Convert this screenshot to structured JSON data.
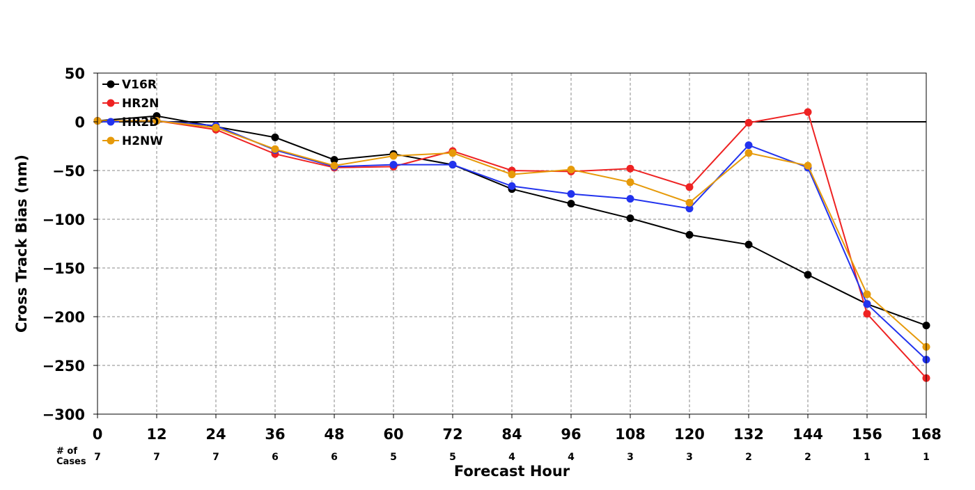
{
  "chart_data": {
    "type": "line",
    "title": "",
    "xlabel": "Forecast Hour",
    "ylabel": "Cross Track Bias (nm)",
    "xlim": [
      0,
      168
    ],
    "ylim": [
      -300,
      50
    ],
    "x_ticks": [
      0,
      12,
      24,
      36,
      48,
      60,
      72,
      84,
      96,
      108,
      120,
      132,
      144,
      156,
      168
    ],
    "x_tick_labels": [
      "0",
      "12",
      "24",
      "36",
      "48",
      "60",
      "72",
      "84",
      "96",
      "108",
      "120",
      "132",
      "144",
      "156",
      "168"
    ],
    "y_ticks": [
      50,
      0,
      -50,
      -100,
      -150,
      -200,
      -250,
      -300
    ],
    "y_tick_labels": [
      "50",
      "0",
      "−50",
      "−100",
      "−150",
      "−200",
      "−250",
      "−300"
    ],
    "grid": true,
    "zero_line": true,
    "legend_position": "top-left",
    "cases_title": "# of\nCases",
    "num_cases": [
      "7",
      "7",
      "7",
      "6",
      "6",
      "5",
      "5",
      "4",
      "4",
      "3",
      "3",
      "2",
      "2",
      "1",
      "1"
    ],
    "x": [
      0,
      12,
      24,
      36,
      48,
      60,
      72,
      84,
      96,
      108,
      120,
      132,
      144,
      156,
      168
    ],
    "series": [
      {
        "name": "V16R",
        "color": "#000000",
        "values": [
          1,
          6,
          -5,
          -16,
          -39,
          -33,
          -44,
          -69,
          -84,
          -99,
          -116,
          -126,
          -157,
          -187,
          -209
        ]
      },
      {
        "name": "HR2N",
        "color": "#ee2222",
        "values": [
          1,
          1,
          -8,
          -33,
          -47,
          -46,
          -30,
          -50,
          -51,
          -48,
          -67,
          -1,
          10,
          -197,
          -263
        ]
      },
      {
        "name": "HR2D",
        "color": "#2233ee",
        "values": [
          1,
          1,
          -4,
          -29,
          -46,
          -44,
          -44,
          -66,
          -74,
          -79,
          -89,
          -24,
          -47,
          -187,
          -244
        ]
      },
      {
        "name": "H2NW",
        "color": "#e69a0a",
        "values": [
          1,
          1,
          -6,
          -28,
          -45,
          -35,
          -32,
          -54,
          -49,
          -62,
          -83,
          -32,
          -45,
          -177,
          -231
        ]
      }
    ]
  }
}
